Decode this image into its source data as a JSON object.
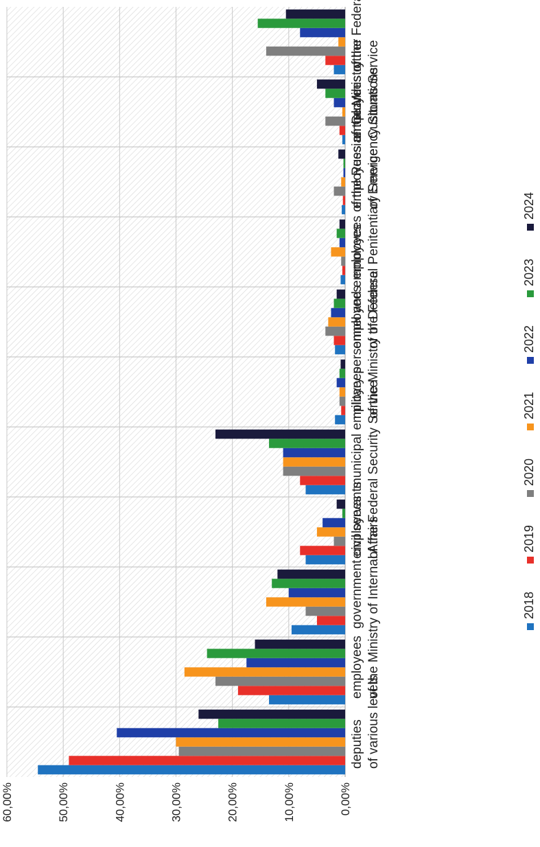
{
  "chart_data": {
    "type": "bar",
    "orientation": "horizontal, figure rotated 90 degrees",
    "title": "",
    "xlabel": "",
    "ylabel": "",
    "value_axis": {
      "range": [
        0,
        60
      ],
      "ticks": [
        "0,00%",
        "10,00%",
        "20,00%",
        "30,00%",
        "40,00%",
        "50,00%",
        "60,00%"
      ]
    },
    "grid": true,
    "legend_position": "right",
    "categories": [
      [
        "deputies",
        "of various levels"
      ],
      [
        "employees",
        "of the Ministry of Internal Affairs"
      ],
      [
        "government civil servants"
      ],
      [
        "employees",
        "of the Federal Security Service"
      ],
      [
        "municipal employees"
      ],
      [
        "military personnel and employees",
        "of the Ministry of Defense"
      ],
      [
        "employees",
        "of the Federal Penitentiary Service"
      ],
      [
        "employees of the Russian Guard"
      ],
      [
        "employees of the Ministry",
        "of Emergency Situations"
      ],
      [
        "employees of the Federal",
        "Customs Service"
      ],
      [
        "other"
      ]
    ],
    "series": [
      {
        "name": "2018",
        "color": "#1f73c0",
        "values": [
          54.5,
          13.5,
          9.5,
          7.0,
          7.0,
          1.8,
          1.8,
          0.8,
          0.6,
          0.5,
          2.0
        ]
      },
      {
        "name": "2019",
        "color": "#e8302a",
        "values": [
          49.0,
          19.0,
          5.0,
          8.0,
          8.0,
          0.7,
          2.0,
          0.5,
          0.4,
          1.0,
          3.5
        ]
      },
      {
        "name": "2020",
        "color": "#7f7f7f",
        "values": [
          29.5,
          23.0,
          7.0,
          2.0,
          11.0,
          1.0,
          3.5,
          0.7,
          2.0,
          3.5,
          14.0
        ]
      },
      {
        "name": "2021",
        "color": "#f7941d",
        "values": [
          30.0,
          28.5,
          14.0,
          5.0,
          11.0,
          1.0,
          3.0,
          2.5,
          0.7,
          0.5,
          1.2
        ]
      },
      {
        "name": "2022",
        "color": "#1f3fa8",
        "values": [
          40.5,
          17.5,
          10.0,
          4.0,
          11.0,
          1.5,
          2.5,
          1.0,
          0.3,
          2.0,
          8.0
        ]
      },
      {
        "name": "2023",
        "color": "#2a9a3c",
        "values": [
          22.5,
          24.5,
          13.0,
          0.5,
          13.5,
          1.0,
          2.0,
          1.5,
          0.3,
          3.5,
          15.5
        ]
      },
      {
        "name": "2024",
        "color": "#1a1a3c",
        "values": [
          26.0,
          16.0,
          12.0,
          1.5,
          23.0,
          0.8,
          1.5,
          1.0,
          1.2,
          5.0,
          10.5
        ]
      }
    ]
  }
}
